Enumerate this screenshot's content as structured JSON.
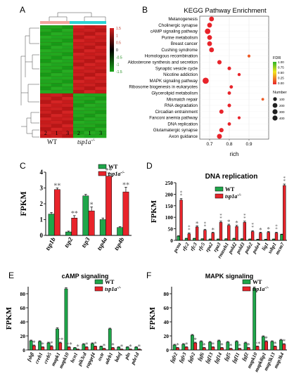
{
  "chart_data": [
    {
      "panel": "A",
      "type": "heatmap",
      "groups": [
        "WT",
        "tsp1a"
      ],
      "group_superscript": "-/-",
      "column_labels": [
        "2",
        "1",
        "3",
        "2",
        "1",
        "3"
      ],
      "rows_up_in_mutant": 20,
      "rows_down_in_mutant": 13,
      "color_scale": {
        "ticks": [
          "1.5",
          "1",
          "0.5",
          "0",
          "-0.5",
          "-1",
          "-1.5"
        ],
        "high": "#d62020",
        "mid": "#000000",
        "low": "#1aa51a"
      },
      "group_bar_colors": [
        "#f2a49c",
        "#2ad3d3"
      ]
    },
    {
      "panel": "B",
      "type": "scatter",
      "title": "KEGG Pathway Enrichment",
      "xlabel": "rich",
      "xlim": [
        0.65,
        1.0
      ],
      "xticks": [
        "0.7",
        "0.8",
        "0.9"
      ],
      "categories": [
        "Melanogenesis",
        "Cholinergic synapse",
        "cAMP signaling pathway",
        "Purine metabolism",
        "Breast cancer",
        "Cushing syndrome",
        "Homologous recombination",
        "Aldosterone synthesis and secretion",
        "Synaptic vesicle cycle",
        "Nicotine addiction",
        "MAPK signaling pathway",
        "Ribosome biogenesis in eukaryotes",
        "Glycerolipid metabolism",
        "Mismatch repair",
        "RNA degradation",
        "Circadian entrainment",
        "Fanconi anemia pathway",
        "DNA replication",
        "Glutamatergic synapse",
        "Axon guidance"
      ],
      "rich": [
        0.71,
        0.7,
        0.69,
        0.7,
        0.7,
        0.71,
        0.9,
        0.75,
        0.8,
        0.85,
        0.68,
        0.81,
        0.8,
        0.97,
        0.8,
        0.76,
        0.85,
        0.8,
        0.76,
        0.75
      ],
      "number": [
        200,
        200,
        300,
        200,
        200,
        200,
        40,
        150,
        80,
        50,
        400,
        70,
        70,
        30,
        80,
        140,
        40,
        70,
        150,
        220
      ],
      "fdr": [
        0.0,
        0.0,
        0.0,
        0.0,
        0.0,
        0.0,
        0.05,
        0.0,
        0.0,
        0.0,
        0.0,
        0.0,
        0.0,
        0.05,
        0.0,
        0.0,
        0.0,
        0.0,
        0.0,
        0.0
      ],
      "legend_fdr_title": "FDR",
      "legend_fdr_ticks": [
        "1.00",
        "0.75",
        "0.50",
        "0.25",
        "0.00"
      ],
      "legend_number_title": "Number",
      "legend_number_items": [
        "100",
        "200",
        "300",
        "400"
      ]
    },
    {
      "panel": "C",
      "type": "bar",
      "ylabel": "FPKM",
      "ylim": [
        0,
        4
      ],
      "yticks": [
        "0",
        "1",
        "2",
        "3",
        "4"
      ],
      "categories": [
        "tsp1b",
        "tsp2",
        "tsp3",
        "tsp4a",
        "tsp4b"
      ],
      "series": [
        {
          "name": "WT",
          "values": [
            1.35,
            0.22,
            2.5,
            1.0,
            0.5
          ],
          "errors": [
            0.1,
            0.05,
            0.1,
            0.1,
            0.05
          ]
        },
        {
          "name": "tsp1a",
          "values": [
            2.9,
            1.1,
            1.55,
            3.75,
            2.75
          ],
          "errors": [
            0.1,
            0.15,
            0.25,
            0.2,
            0.3
          ]
        }
      ],
      "significance": [
        "**",
        "**",
        "*",
        "**",
        "**"
      ]
    },
    {
      "panel": "D",
      "type": "bar",
      "title": "DNA replication",
      "ylabel": "FPKM",
      "ylim": [
        0,
        250
      ],
      "yticks": [
        "0",
        "50",
        "100",
        "150",
        "200",
        "250"
      ],
      "categories": [
        "pcna",
        "rfc2",
        "rfc3",
        "rfc5",
        "rpa2",
        "rpa3",
        "rnaseh1",
        "pold2",
        "pold3",
        "pole2",
        "pole4",
        "lig1",
        "ssbp1",
        "mcm7"
      ],
      "series": [
        {
          "name": "WT",
          "values": [
            18,
            8,
            8,
            6,
            5,
            5,
            6,
            8,
            6,
            5,
            4,
            4,
            5,
            25
          ],
          "errors": [
            2,
            1,
            1,
            1,
            1,
            1,
            1,
            1,
            1,
            1,
            1,
            1,
            1,
            2
          ]
        },
        {
          "name": "tsp1a",
          "values": [
            175,
            28,
            58,
            44,
            32,
            78,
            65,
            60,
            78,
            38,
            32,
            35,
            32,
            238
          ],
          "errors": [
            6,
            4,
            5,
            4,
            3,
            5,
            5,
            5,
            5,
            4,
            3,
            3,
            3,
            6
          ]
        }
      ],
      "significance": [
        "**",
        "**",
        "*",
        "**",
        "*",
        "**",
        "*",
        "*",
        "**",
        "**",
        "*",
        "*",
        "**",
        "**"
      ]
    },
    {
      "panel": "E",
      "type": "bar",
      "title": "cAMP signaling",
      "ylabel": "FPKM",
      "ylim": [
        0,
        90
      ],
      "yticks": [
        "0",
        "20",
        "40",
        "60",
        "80"
      ],
      "categories": [
        "fshβ",
        "creb1",
        "creb5",
        "mapk1",
        "mapk10",
        "hcn1",
        "pik3cd",
        "rapgef4",
        "oxtr",
        "adrb1",
        "bdnf",
        "pln",
        "pde1d"
      ],
      "series": [
        {
          "name": "WT",
          "values": [
            13,
            12,
            10,
            30,
            87,
            3,
            8,
            9,
            5,
            30,
            4,
            4,
            4
          ],
          "errors": [
            1,
            1,
            1,
            1.5,
            1.5,
            0.5,
            1,
            1,
            0.5,
            1,
            0.5,
            0.5,
            0.5
          ]
        },
        {
          "name": "tsp1a",
          "values": [
            6,
            4,
            5,
            10,
            4,
            1,
            4,
            5,
            2,
            3,
            1,
            1,
            1
          ],
          "errors": [
            1,
            0.5,
            1,
            1,
            0.5,
            0.3,
            0.5,
            0.5,
            0.3,
            0.5,
            0.3,
            0.3,
            0.3
          ]
        }
      ],
      "significance": [
        "*",
        "*",
        "*",
        "**",
        "**",
        "*",
        "*",
        "*",
        "*",
        "*",
        "*",
        "*",
        "*"
      ]
    },
    {
      "panel": "F",
      "type": "bar",
      "title": "MAPK signaling",
      "ylabel": "FPKM",
      "ylim": [
        0,
        90
      ],
      "yticks": [
        "0",
        "20",
        "40",
        "60",
        "80"
      ],
      "categories": [
        "fgfr2",
        "fgfr3",
        "fgfr2",
        "fgf6",
        "fgf13",
        "fgf14",
        "fgf5",
        "fgf11",
        "fgf2",
        "mapk10",
        "mapk8ip1",
        "map3k13",
        "map3k4"
      ],
      "series": [
        {
          "name": "WT",
          "values": [
            7,
            8,
            21,
            12,
            11,
            13,
            11,
            12,
            10,
            88,
            19,
            12,
            14
          ],
          "errors": [
            1,
            1,
            1,
            1,
            1,
            1,
            1,
            1,
            1,
            1.5,
            1,
            1,
            1
          ]
        },
        {
          "name": "tsp1a",
          "values": [
            3,
            4,
            10,
            3,
            4,
            3,
            2,
            2,
            3,
            5,
            12,
            5,
            8
          ],
          "errors": [
            0.5,
            0.5,
            1,
            0.5,
            0.5,
            0.5,
            0.3,
            0.3,
            0.5,
            0.5,
            1,
            0.5,
            1
          ]
        }
      ],
      "significance": [
        "*",
        "*",
        "*",
        "*",
        "*",
        "*",
        "*",
        "*",
        "*",
        "**",
        "*",
        "*",
        "*"
      ]
    }
  ],
  "panel_letters": [
    "A",
    "B",
    "C",
    "D",
    "E",
    "F"
  ],
  "legend": {
    "wt_label": "WT",
    "mut_label": "tsp1a",
    "mut_superscript": "-/-"
  },
  "colors": {
    "wt": "#1fa64a",
    "mut": "#e8242b",
    "dot": "#e8242b"
  }
}
